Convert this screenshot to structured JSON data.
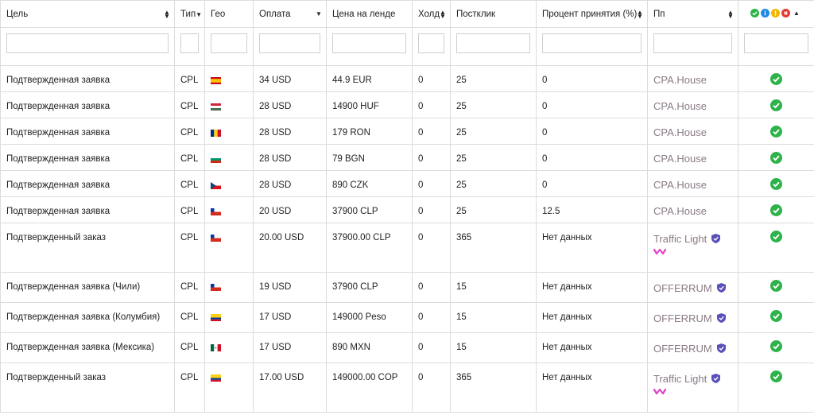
{
  "headers": {
    "goal": "Цель",
    "type": "Тип",
    "geo": "Гео",
    "payout": "Оплата",
    "landing_price": "Цена на ленде",
    "hold": "Холд",
    "postclick": "Постклик",
    "acceptance": "Процент принятия (%)",
    "network": "Пп"
  },
  "colors": {
    "check": "#2db34a",
    "info": "#1e88e5",
    "warn": "#f5b400",
    "error": "#e53935",
    "shield": "#5a4fb8",
    "network_text": "#8a7a85",
    "brand_w": "#e040c8"
  },
  "rows": [
    {
      "goal": "Подтвержденная заявка",
      "type": "CPL",
      "geo": "ES",
      "payout": "34 USD",
      "price": "44.9 EUR",
      "hold": "0",
      "postclick": "25",
      "acceptance": "0",
      "network": "CPA.House",
      "verified": false,
      "status_icon": "check-circle-icon"
    },
    {
      "goal": "Подтвержденная заявка",
      "type": "CPL",
      "geo": "HU",
      "payout": "28 USD",
      "price": "14900 HUF",
      "hold": "0",
      "postclick": "25",
      "acceptance": "0",
      "network": "CPA.House",
      "verified": false,
      "status_icon": "check-circle-icon"
    },
    {
      "goal": "Подтвержденная заявка",
      "type": "CPL",
      "geo": "RO",
      "payout": "28 USD",
      "price": "179 RON",
      "hold": "0",
      "postclick": "25",
      "acceptance": "0",
      "network": "CPA.House",
      "verified": false,
      "status_icon": "check-circle-icon"
    },
    {
      "goal": "Подтвержденная заявка",
      "type": "CPL",
      "geo": "BG",
      "payout": "28 USD",
      "price": "79 BGN",
      "hold": "0",
      "postclick": "25",
      "acceptance": "0",
      "network": "CPA.House",
      "verified": false,
      "status_icon": "check-circle-icon"
    },
    {
      "goal": "Подтвержденная заявка",
      "type": "CPL",
      "geo": "CZ",
      "payout": "28 USD",
      "price": "890 CZK",
      "hold": "0",
      "postclick": "25",
      "acceptance": "0",
      "network": "CPA.House",
      "verified": false,
      "status_icon": "check-circle-icon"
    },
    {
      "goal": "Подтвержденная заявка",
      "type": "CPL",
      "geo": "CL",
      "payout": "20 USD",
      "price": "37900 CLP",
      "hold": "0",
      "postclick": "25",
      "acceptance": "12.5",
      "network": "CPA.House",
      "verified": false,
      "status_icon": "check-circle-icon"
    },
    {
      "goal": "Подтвержденный заказ",
      "type": "CPL",
      "geo": "CL",
      "payout": "20.00 USD",
      "price": "37900.00 CLP",
      "hold": "0",
      "postclick": "365",
      "acceptance": "Нет данных",
      "network": "Traffic Light",
      "verified": true,
      "brand_mark": true,
      "status_icon": "check-circle-icon"
    },
    {
      "goal": "Подтвержденная заявка (Чили)",
      "type": "CPL",
      "geo": "CL",
      "payout": "19 USD",
      "price": "37900 CLP",
      "hold": "0",
      "postclick": "15",
      "acceptance": "Нет данных",
      "network": "OFFERRUM",
      "verified": true,
      "status_icon": "check-circle-icon"
    },
    {
      "goal": "Подтвержденная заявка (Колумбия)",
      "type": "CPL",
      "geo": "CO",
      "payout": "17 USD",
      "price": "149000 Peso",
      "hold": "0",
      "postclick": "15",
      "acceptance": "Нет данных",
      "network": "OFFERRUM",
      "verified": true,
      "status_icon": "check-circle-icon"
    },
    {
      "goal": "Подтвержденная заявка (Мексика)",
      "type": "CPL",
      "geo": "MX",
      "payout": "17 USD",
      "price": "890 MXN",
      "hold": "0",
      "postclick": "15",
      "acceptance": "Нет данных",
      "network": "OFFERRUM",
      "verified": true,
      "status_icon": "check-circle-icon"
    },
    {
      "goal": "Подтвержденный заказ",
      "type": "CPL",
      "geo": "CO",
      "payout": "17.00 USD",
      "price": "149000.00 COP",
      "hold": "0",
      "postclick": "365",
      "acceptance": "Нет данных",
      "network": "Traffic Light",
      "verified": true,
      "brand_mark": true,
      "status_icon": "check-circle-icon"
    }
  ]
}
